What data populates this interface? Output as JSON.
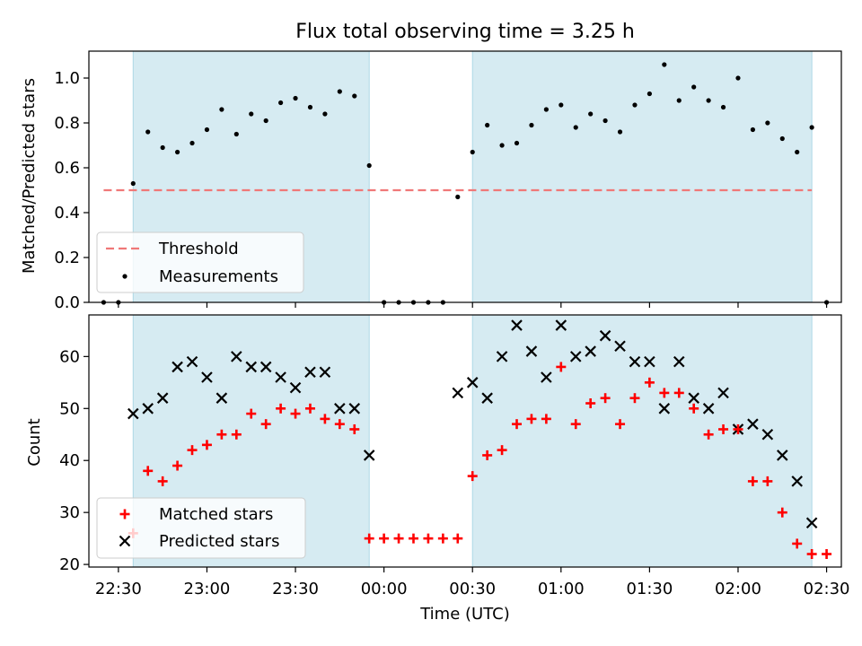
{
  "chart_data": [
    {
      "type": "scatter",
      "title": "Flux total observing time = 3.25 h",
      "ylabel": "Matched/Predicted stars",
      "xlabel": "",
      "ylim": [
        0,
        1.12
      ],
      "yticks": [
        "0.0",
        "0.2",
        "0.4",
        "0.6",
        "0.8",
        "1.0"
      ],
      "grid": false,
      "legend_position": "lower-left",
      "threshold": {
        "name": "Threshold",
        "value": 0.5,
        "x_start": "22:25",
        "x_end": "02:25",
        "color": "#f07878"
      },
      "observing_windows": [
        {
          "start": "22:35",
          "end": "23:55"
        },
        {
          "start": "00:30",
          "end": "02:25"
        }
      ],
      "series": [
        {
          "name": "Measurements",
          "color": "#000000",
          "points": [
            [
              "22:25",
              0.0
            ],
            [
              "22:30",
              0.0
            ],
            [
              "22:35",
              0.53
            ],
            [
              "22:40",
              0.76
            ],
            [
              "22:45",
              0.69
            ],
            [
              "22:50",
              0.67
            ],
            [
              "22:55",
              0.71
            ],
            [
              "23:00",
              0.77
            ],
            [
              "23:05",
              0.86
            ],
            [
              "23:10",
              0.75
            ],
            [
              "23:15",
              0.84
            ],
            [
              "23:20",
              0.81
            ],
            [
              "23:25",
              0.89
            ],
            [
              "23:30",
              0.91
            ],
            [
              "23:35",
              0.87
            ],
            [
              "23:40",
              0.84
            ],
            [
              "23:45",
              0.94
            ],
            [
              "23:50",
              0.92
            ],
            [
              "23:55",
              0.61
            ],
            [
              "00:00",
              0.0
            ],
            [
              "00:05",
              0.0
            ],
            [
              "00:10",
              0.0
            ],
            [
              "00:15",
              0.0
            ],
            [
              "00:20",
              0.0
            ],
            [
              "00:25",
              0.47
            ],
            [
              "00:30",
              0.67
            ],
            [
              "00:35",
              0.79
            ],
            [
              "00:40",
              0.7
            ],
            [
              "00:45",
              0.71
            ],
            [
              "00:50",
              0.79
            ],
            [
              "00:55",
              0.86
            ],
            [
              "01:00",
              0.88
            ],
            [
              "01:05",
              0.78
            ],
            [
              "01:10",
              0.84
            ],
            [
              "01:15",
              0.81
            ],
            [
              "01:20",
              0.76
            ],
            [
              "01:25",
              0.88
            ],
            [
              "01:30",
              0.93
            ],
            [
              "01:35",
              1.06
            ],
            [
              "01:40",
              0.9
            ],
            [
              "01:45",
              0.96
            ],
            [
              "01:50",
              0.9
            ],
            [
              "01:55",
              0.87
            ],
            [
              "02:00",
              1.0
            ],
            [
              "02:05",
              0.77
            ],
            [
              "02:10",
              0.8
            ],
            [
              "02:15",
              0.73
            ],
            [
              "02:20",
              0.67
            ],
            [
              "02:25",
              0.78
            ],
            [
              "02:30",
              0.0
            ]
          ]
        }
      ]
    },
    {
      "type": "scatter",
      "title": "",
      "ylabel": "Count",
      "xlabel": "Time (UTC)",
      "ylim": [
        19.5,
        68
      ],
      "yticks": [
        "20",
        "30",
        "40",
        "50",
        "60"
      ],
      "xlim": [
        "22:20",
        "02:35"
      ],
      "xticks": [
        "22:30",
        "23:00",
        "23:30",
        "00:00",
        "00:30",
        "01:00",
        "01:30",
        "02:00",
        "02:30"
      ],
      "grid": false,
      "legend_position": "lower-left",
      "observing_windows": [
        {
          "start": "22:35",
          "end": "23:55"
        },
        {
          "start": "00:30",
          "end": "02:25"
        }
      ],
      "series": [
        {
          "name": "Matched stars",
          "marker": "plus",
          "color": "#ff0000",
          "points": [
            [
              "22:35",
              26
            ],
            [
              "22:40",
              38
            ],
            [
              "22:45",
              36
            ],
            [
              "22:50",
              39
            ],
            [
              "22:55",
              42
            ],
            [
              "23:00",
              43
            ],
            [
              "23:05",
              45
            ],
            [
              "23:10",
              45
            ],
            [
              "23:15",
              49
            ],
            [
              "23:20",
              47
            ],
            [
              "23:25",
              50
            ],
            [
              "23:30",
              49
            ],
            [
              "23:35",
              50
            ],
            [
              "23:40",
              48
            ],
            [
              "23:45",
              47
            ],
            [
              "23:50",
              46
            ],
            [
              "23:55",
              25
            ],
            [
              "00:00",
              25
            ],
            [
              "00:05",
              25
            ],
            [
              "00:10",
              25
            ],
            [
              "00:15",
              25
            ],
            [
              "00:20",
              25
            ],
            [
              "00:25",
              25
            ],
            [
              "00:30",
              37
            ],
            [
              "00:35",
              41
            ],
            [
              "00:40",
              42
            ],
            [
              "00:45",
              47
            ],
            [
              "00:50",
              48
            ],
            [
              "00:55",
              48
            ],
            [
              "01:00",
              58
            ],
            [
              "01:05",
              47
            ],
            [
              "01:10",
              51
            ],
            [
              "01:15",
              52
            ],
            [
              "01:20",
              47
            ],
            [
              "01:25",
              52
            ],
            [
              "01:30",
              55
            ],
            [
              "01:35",
              53
            ],
            [
              "01:40",
              53
            ],
            [
              "01:45",
              50
            ],
            [
              "01:50",
              45
            ],
            [
              "01:55",
              46
            ],
            [
              "02:00",
              46
            ],
            [
              "02:05",
              36
            ],
            [
              "02:10",
              36
            ],
            [
              "02:15",
              30
            ],
            [
              "02:20",
              24
            ],
            [
              "02:25",
              22
            ],
            [
              "02:30",
              22
            ]
          ]
        },
        {
          "name": "Predicted stars",
          "marker": "x",
          "color": "#000000",
          "points": [
            [
              "22:35",
              49
            ],
            [
              "22:40",
              50
            ],
            [
              "22:45",
              52
            ],
            [
              "22:50",
              58
            ],
            [
              "22:55",
              59
            ],
            [
              "23:00",
              56
            ],
            [
              "23:05",
              52
            ],
            [
              "23:10",
              60
            ],
            [
              "23:15",
              58
            ],
            [
              "23:20",
              58
            ],
            [
              "23:25",
              56
            ],
            [
              "23:30",
              54
            ],
            [
              "23:35",
              57
            ],
            [
              "23:40",
              57
            ],
            [
              "23:45",
              50
            ],
            [
              "23:50",
              50
            ],
            [
              "23:55",
              41
            ],
            [
              "00:25",
              53
            ],
            [
              "00:30",
              55
            ],
            [
              "00:35",
              52
            ],
            [
              "00:40",
              60
            ],
            [
              "00:45",
              66
            ],
            [
              "00:50",
              61
            ],
            [
              "00:55",
              56
            ],
            [
              "01:00",
              66
            ],
            [
              "01:05",
              60
            ],
            [
              "01:10",
              61
            ],
            [
              "01:15",
              64
            ],
            [
              "01:20",
              62
            ],
            [
              "01:25",
              59
            ],
            [
              "01:30",
              59
            ],
            [
              "01:35",
              50
            ],
            [
              "01:40",
              59
            ],
            [
              "01:45",
              52
            ],
            [
              "01:50",
              50
            ],
            [
              "01:55",
              53
            ],
            [
              "02:00",
              46
            ],
            [
              "02:05",
              47
            ],
            [
              "02:10",
              45
            ],
            [
              "02:15",
              41
            ],
            [
              "02:20",
              36
            ],
            [
              "02:25",
              28
            ]
          ]
        }
      ]
    }
  ]
}
